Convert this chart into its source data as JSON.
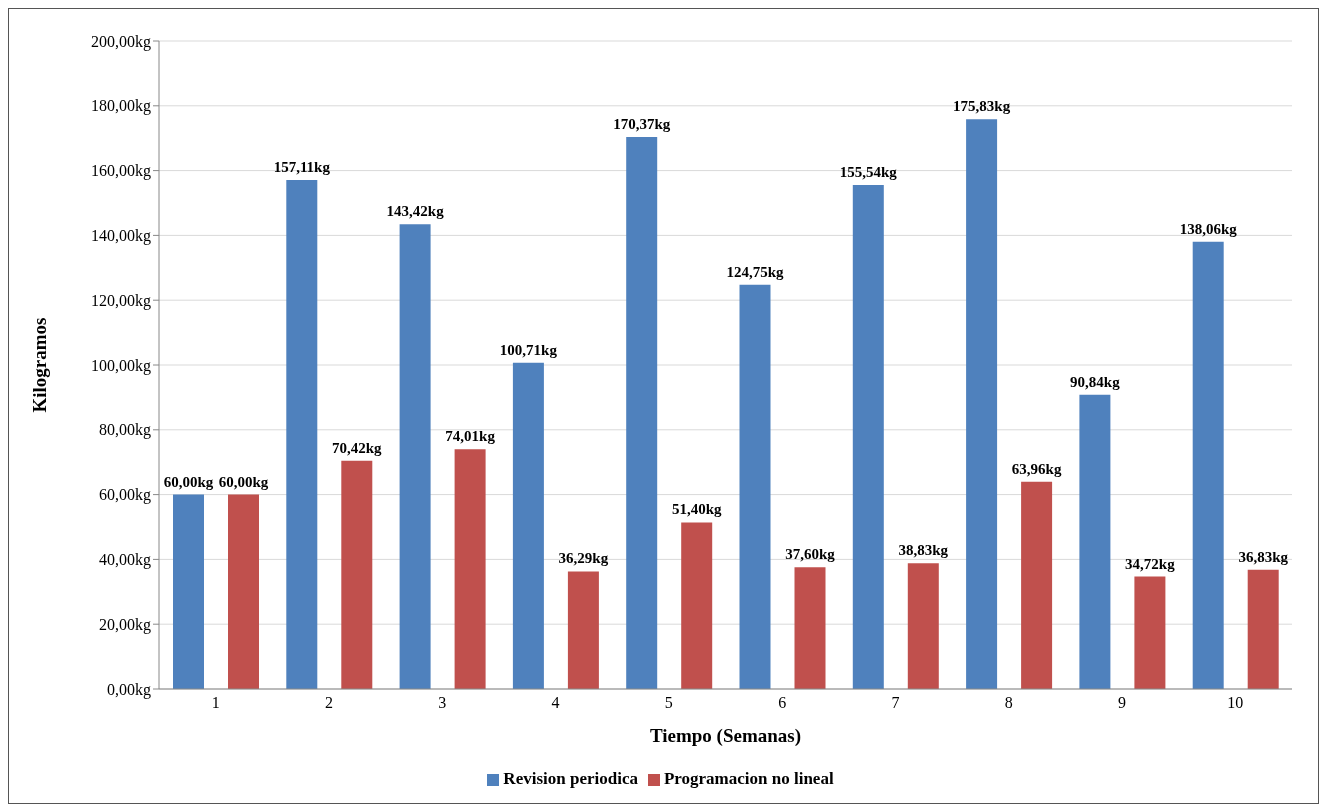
{
  "chart_data": {
    "type": "bar",
    "xlabel": "Tiempo (Semanas)",
    "ylabel": "Kilogramos",
    "categories": [
      "1",
      "2",
      "3",
      "4",
      "5",
      "6",
      "7",
      "8",
      "9",
      "10"
    ],
    "series": [
      {
        "name": "Revision periodica",
        "color": "#4f81bd",
        "values": [
          60.0,
          157.11,
          143.42,
          100.71,
          170.37,
          124.75,
          155.54,
          175.83,
          90.84,
          138.06
        ],
        "value_labels": [
          "60,00kg",
          "157,11kg",
          "143,42kg",
          "100,71kg",
          "170,37kg",
          "124,75kg",
          "155,54kg",
          "175,83kg",
          "90,84kg",
          "138,06kg"
        ]
      },
      {
        "name": "Programacion no lineal",
        "color": "#c0504d",
        "values": [
          60.0,
          70.42,
          74.01,
          36.29,
          51.4,
          37.6,
          38.83,
          63.96,
          34.72,
          36.83
        ],
        "value_labels": [
          "60,00kg",
          "70,42kg",
          "74,01kg",
          "36,29kg",
          "51,40kg",
          "37,60kg",
          "38,83kg",
          "63,96kg",
          "34,72kg",
          "36,83kg"
        ]
      }
    ],
    "ylim": [
      0,
      200
    ],
    "yticks": [
      {
        "value": 0,
        "label": "0,00kg"
      },
      {
        "value": 20,
        "label": "20,00kg"
      },
      {
        "value": 40,
        "label": "40,00kg"
      },
      {
        "value": 60,
        "label": "60,00kg"
      },
      {
        "value": 80,
        "label": "80,00kg"
      },
      {
        "value": 100,
        "label": "100,00kg"
      },
      {
        "value": 120,
        "label": "120,00kg"
      },
      {
        "value": 140,
        "label": "140,00kg"
      },
      {
        "value": 160,
        "label": "160,00kg"
      },
      {
        "value": 180,
        "label": "180,00kg"
      },
      {
        "value": 200,
        "label": "200,00kg"
      }
    ],
    "grid": "y",
    "legend": "bottom"
  }
}
